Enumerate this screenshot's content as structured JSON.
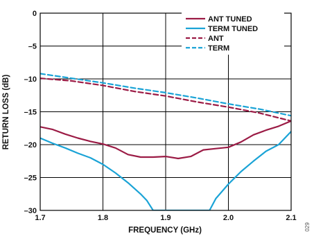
{
  "figure_id": "029",
  "chart_data": {
    "type": "line",
    "xlabel": "FREQUENCY (GHz)",
    "ylabel": "RETURN LOSS (dB)",
    "xlim": [
      1.7,
      2.1
    ],
    "ylim": [
      -30,
      0
    ],
    "xticks": [
      1.7,
      1.8,
      1.9,
      2.0,
      2.1
    ],
    "xtick_labels": [
      "1.7",
      "1.8",
      "1.9",
      "2.0",
      "2.1"
    ],
    "yticks": [
      0,
      -5,
      -10,
      -15,
      -20,
      -25,
      -30
    ],
    "ytick_labels": [
      "0",
      "–5",
      "–10",
      "–15",
      "–20",
      "–25",
      "–30"
    ],
    "grid": true,
    "legend_position": "top-right",
    "series": [
      {
        "name": "ANT TUNED",
        "color": "#9b1b45",
        "dash": "solid",
        "x": [
          1.7,
          1.72,
          1.74,
          1.76,
          1.78,
          1.8,
          1.82,
          1.84,
          1.86,
          1.88,
          1.9,
          1.92,
          1.94,
          1.96,
          1.98,
          2.0,
          2.02,
          2.04,
          2.06,
          2.08,
          2.1
        ],
        "y": [
          -17.3,
          -17.7,
          -18.4,
          -19.0,
          -19.5,
          -19.9,
          -20.5,
          -21.5,
          -21.9,
          -21.9,
          -21.8,
          -22.1,
          -21.8,
          -20.8,
          -20.6,
          -20.4,
          -19.6,
          -18.5,
          -17.8,
          -17.2,
          -16.4
        ]
      },
      {
        "name": "TERM TUNED",
        "color": "#1aa3d6",
        "dash": "solid",
        "x": [
          1.7,
          1.72,
          1.74,
          1.76,
          1.78,
          1.8,
          1.82,
          1.84,
          1.86,
          1.87,
          1.88,
          1.97,
          1.98,
          2.0,
          2.02,
          2.04,
          2.06,
          2.08,
          2.1
        ],
        "y": [
          -19.0,
          -19.8,
          -20.5,
          -21.3,
          -22.0,
          -23.0,
          -24.3,
          -25.8,
          -27.5,
          -28.5,
          -30.0,
          -30.0,
          -28.2,
          -26.0,
          -24.1,
          -22.5,
          -21.0,
          -20.0,
          -18.0
        ]
      },
      {
        "name": "ANT",
        "color": "#9b1b45",
        "dash": "dashed",
        "x": [
          1.7,
          1.75,
          1.8,
          1.85,
          1.9,
          1.95,
          2.0,
          2.05,
          2.1
        ],
        "y": [
          -9.9,
          -10.3,
          -11.0,
          -11.9,
          -12.6,
          -13.5,
          -14.3,
          -15.2,
          -16.4
        ]
      },
      {
        "name": "TERM",
        "color": "#1aa3d6",
        "dash": "dashed",
        "x": [
          1.7,
          1.75,
          1.8,
          1.85,
          1.9,
          1.95,
          2.0,
          2.05,
          2.1
        ],
        "y": [
          -9.2,
          -9.9,
          -10.6,
          -11.4,
          -12.1,
          -12.9,
          -13.8,
          -14.6,
          -15.6
        ]
      }
    ]
  }
}
